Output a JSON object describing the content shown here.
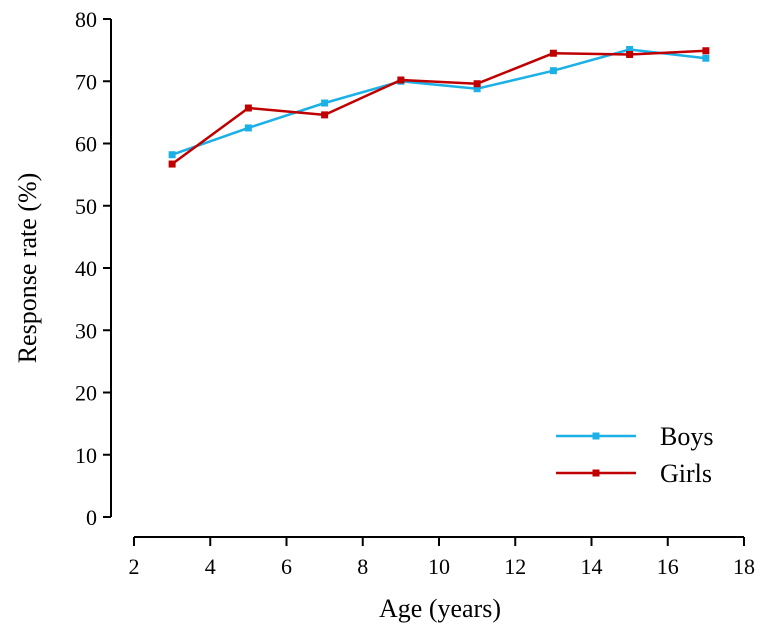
{
  "chart_data": {
    "type": "line",
    "title": "",
    "xlabel": "Age (years)",
    "ylabel": "Response rate (%)",
    "xlim": [
      2,
      18
    ],
    "ylim": [
      0,
      80
    ],
    "xticks": [
      2,
      4,
      6,
      8,
      10,
      12,
      14,
      16,
      18
    ],
    "yticks": [
      0,
      10,
      20,
      30,
      40,
      50,
      60,
      70,
      80
    ],
    "grid": false,
    "legend_position": "bottom-right",
    "series": [
      {
        "name": "Boys",
        "color": "#1BB0E6",
        "marker": "square",
        "x": [
          3,
          5,
          7,
          9,
          11,
          13,
          15,
          17
        ],
        "y": [
          58.2,
          62.5,
          66.5,
          70.0,
          68.8,
          71.7,
          75.1,
          73.7
        ]
      },
      {
        "name": "Girls",
        "color": "#C00000",
        "marker": "square",
        "x": [
          3,
          5,
          7,
          9,
          11,
          13,
          15,
          17
        ],
        "y": [
          56.7,
          65.7,
          64.6,
          70.2,
          69.6,
          74.5,
          74.3,
          74.9
        ]
      }
    ]
  }
}
